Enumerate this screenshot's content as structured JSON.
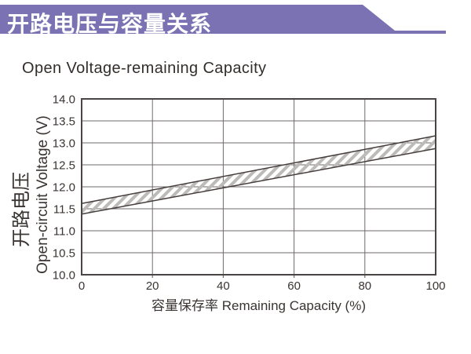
{
  "header": {
    "title": "开路电压与容量关系"
  },
  "subtitle": "Open Voltage-remaining Capacity",
  "colors": {
    "banner": "#7a72b2",
    "header_text": "#ffffff",
    "text": "#3a3433",
    "grid": "#6e6a69",
    "border": "#4a4444",
    "band_border": "#453e3c",
    "hatch": "#bdbaba"
  },
  "chart_data": {
    "type": "area",
    "title": "Open Voltage-remaining Capacity",
    "xlabel": "容量保存率 Remaining Capacity (%)",
    "ylabel_lines": [
      "开路电压",
      "Open-circuit Voltage (V)"
    ],
    "xlim": [
      0,
      100
    ],
    "ylim": [
      10.0,
      14.0
    ],
    "x_ticks": [
      0,
      20,
      40,
      60,
      80,
      100
    ],
    "y_ticks": [
      10.0,
      10.5,
      11.0,
      11.5,
      12.0,
      12.5,
      13.0,
      13.5,
      14.0
    ],
    "grid": true,
    "legend": "none",
    "band": {
      "name": "open-circuit-voltage-range",
      "style": "diagonal-hatch",
      "x": [
        0,
        100
      ],
      "lower": [
        11.38,
        12.87
      ],
      "upper": [
        11.62,
        13.16
      ]
    }
  }
}
